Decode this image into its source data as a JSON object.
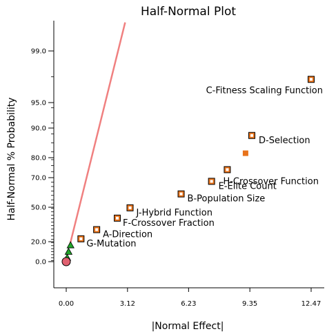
{
  "chart_data": {
    "type": "scatter",
    "title": "Half-Normal Plot",
    "xlabel": "|Normal Effect|",
    "ylabel": "Half-Normal % Probability",
    "xlim": [
      0.0,
      12.47
    ],
    "x_ticks": [
      "0.00",
      "3.12",
      "6.23",
      "9.35",
      "12.47"
    ],
    "y_ticks": [
      "0.0",
      "20.0",
      "50.0",
      "70.0",
      "80.0",
      "90.0",
      "95.0",
      "99.0"
    ],
    "colors": {
      "term": "#e8731b",
      "error": "#22a52a",
      "line": "#f08080",
      "intercept": "#e06070"
    },
    "points": [
      {
        "label": "C-Fitness Scaling Function",
        "x": 12.47,
        "y": 96.8,
        "kind": "term"
      },
      {
        "label": "D-Selection",
        "x": 9.45,
        "y": 87.5,
        "kind": "term"
      },
      {
        "label": "",
        "x": 9.13,
        "y": 81.5,
        "kind": "term-filled"
      },
      {
        "label": "H-Crossover Function",
        "x": 8.2,
        "y": 74.0,
        "kind": "term"
      },
      {
        "label": "E-Elite Count",
        "x": 7.4,
        "y": 67.5,
        "kind": "term"
      },
      {
        "label": "B-Population Size",
        "x": 5.85,
        "y": 59.0,
        "kind": "term"
      },
      {
        "label": "J-Hybrid Function",
        "x": 3.25,
        "y": 49.5,
        "kind": "term"
      },
      {
        "label": "F-Crossover Fraction",
        "x": 2.6,
        "y": 40.5,
        "kind": "term"
      },
      {
        "label": "A-Direction",
        "x": 1.55,
        "y": 30.5,
        "kind": "term"
      },
      {
        "label": "G-Mutation",
        "x": 0.75,
        "y": 22.5,
        "kind": "term"
      },
      {
        "label": "",
        "x": 0.22,
        "y": 16.5,
        "kind": "error"
      },
      {
        "label": "",
        "x": 0.12,
        "y": 10.0,
        "kind": "error"
      },
      {
        "label": "",
        "x": 0.05,
        "y": 4.0,
        "kind": "error"
      },
      {
        "label": "",
        "x": 0.0,
        "y": 0.0,
        "kind": "intercept"
      }
    ],
    "fit_line": {
      "x": [
        0.15,
        3.0
      ],
      "y": [
        14.0,
        99.9
      ]
    }
  }
}
